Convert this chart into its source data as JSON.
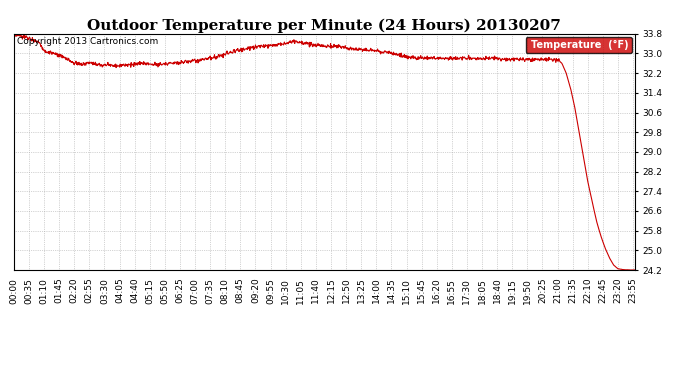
{
  "title": "Outdoor Temperature per Minute (24 Hours) 20130207",
  "copyright_text": "Copyright 2013 Cartronics.com",
  "line_color": "#cc0000",
  "legend_label": "Temperature  (°F)",
  "legend_bg": "#cc0000",
  "legend_text_color": "#ffffff",
  "background_color": "#ffffff",
  "grid_color": "#aaaaaa",
  "ylim": [
    24.2,
    33.8
  ],
  "yticks": [
    24.2,
    25.0,
    25.8,
    26.6,
    27.4,
    28.2,
    29.0,
    29.8,
    30.6,
    31.4,
    32.2,
    33.0,
    33.8
  ],
  "xtick_labels": [
    "00:00",
    "00:35",
    "01:10",
    "01:45",
    "02:20",
    "02:55",
    "03:30",
    "04:05",
    "04:40",
    "05:15",
    "05:50",
    "06:25",
    "07:00",
    "07:35",
    "08:10",
    "08:45",
    "09:20",
    "09:55",
    "10:30",
    "11:05",
    "11:40",
    "12:15",
    "12:50",
    "13:25",
    "14:00",
    "14:35",
    "15:10",
    "15:45",
    "16:20",
    "16:55",
    "17:30",
    "18:05",
    "18:40",
    "19:15",
    "19:50",
    "20:25",
    "21:00",
    "21:35",
    "22:10",
    "22:45",
    "23:20",
    "23:55"
  ],
  "title_fontsize": 11,
  "tick_fontsize": 6.5,
  "copyright_fontsize": 6.5,
  "line_width": 0.8,
  "n_points": 1440
}
